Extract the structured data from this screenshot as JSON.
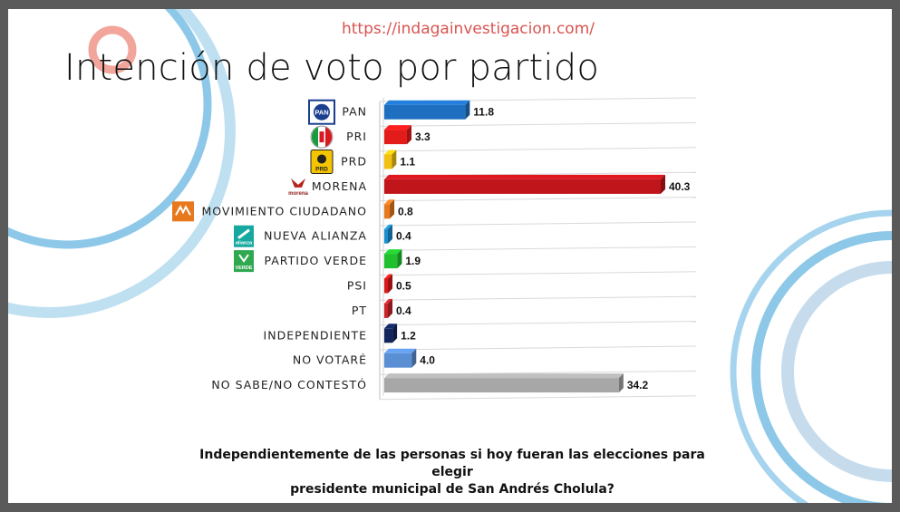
{
  "header": {
    "url": "https://indagainvestigacion.com/",
    "title": "Intención de voto por partido"
  },
  "footer": {
    "question_line1": "Independientemente de las personas si hoy fueran las elecciones para elegir",
    "question_line2": "presidente municipal de San Andrés Cholula?"
  },
  "logos": {
    "pan": "PAN",
    "prd": "PRD",
    "morena": "morena",
    "nueva_alianza": "alianza",
    "verde": "VERDE"
  },
  "chart_data": {
    "type": "bar",
    "orientation": "horizontal",
    "categories": [
      "PAN",
      "PRI",
      "PRD",
      "MORENA",
      "MOVIMIENTO CIUDADANO",
      "NUEVA ALIANZA",
      "PARTIDO VERDE",
      "PSI",
      "PT",
      "INDEPENDIENTE",
      "NO VOTARÉ",
      "NO SABE/NO CONTESTÓ"
    ],
    "values": [
      11.8,
      3.3,
      1.1,
      40.3,
      0.8,
      0.4,
      1.9,
      0.5,
      0.4,
      1.2,
      4.0,
      34.2
    ],
    "value_labels": [
      "11.8",
      "3.3",
      "1.1",
      "40.3",
      "0.8",
      "0.4",
      "1.9",
      "0.5",
      "0.4",
      "1.2",
      "4.0",
      "34.2"
    ],
    "colors": [
      "#1f6fc1",
      "#e31b1b",
      "#f2c10f",
      "#c0151b",
      "#e8781e",
      "#1b8fd0",
      "#1fbf2d",
      "#d91a1a",
      "#c8242a",
      "#12265e",
      "#5b8fd4",
      "#a7a7a7"
    ],
    "icons": [
      "pan-logo",
      "pri-logo",
      "prd-logo",
      "morena-logo",
      "movimiento-ciudadano-logo",
      "nueva-alianza-logo",
      "partido-verde-logo",
      null,
      null,
      null,
      null,
      null
    ],
    "xlim": [
      0,
      40.3
    ],
    "grid": true,
    "legend": "none"
  }
}
